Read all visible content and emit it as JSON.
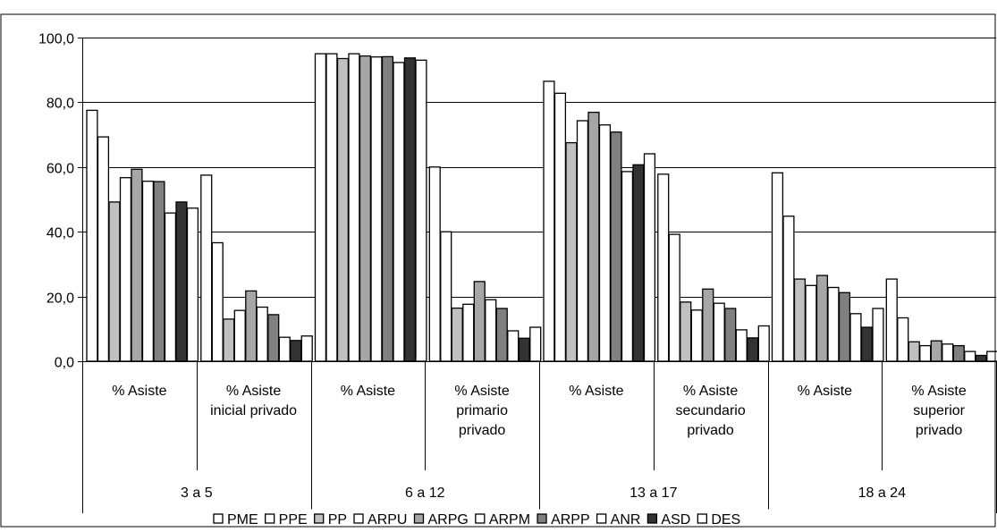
{
  "chart_data": {
    "type": "bar",
    "title": "",
    "xlabel": "",
    "ylabel": "",
    "ylim": [
      0,
      100
    ],
    "y_ticks": [
      "0,0",
      "20,0",
      "40,0",
      "60,0",
      "80,0",
      "100,0"
    ],
    "y_tick_values": [
      0,
      20,
      40,
      60,
      80,
      100
    ],
    "grid": true,
    "legend_position": "bottom",
    "groups": [
      {
        "label": "3 a 5",
        "categories": [
          [
            "% Asiste"
          ],
          [
            "% Asiste",
            "inicial privado"
          ]
        ]
      },
      {
        "label": "6 a 12",
        "categories": [
          [
            "% Asiste"
          ],
          [
            "% Asiste",
            "primario",
            "privado"
          ]
        ]
      },
      {
        "label": "13 a 17",
        "categories": [
          [
            "% Asiste"
          ],
          [
            "% Asiste",
            "secundario",
            "privado"
          ]
        ]
      },
      {
        "label": "18 a 24",
        "categories": [
          [
            "% Asiste"
          ],
          [
            "% Asiste",
            "superior",
            "privado"
          ]
        ]
      }
    ],
    "series": [
      {
        "name": "PME",
        "color": "#ffffff",
        "values": [
          77.5,
          57.5,
          95.0,
          60.0,
          86.5,
          57.8,
          58.2,
          25.4
        ]
      },
      {
        "name": "PPE",
        "color": "#ffffff",
        "values": [
          69.3,
          36.6,
          95.0,
          40.0,
          82.8,
          39.2,
          44.8,
          13.4
        ]
      },
      {
        "name": "PP",
        "color": "#c0c0c0",
        "values": [
          49.2,
          13.0,
          93.5,
          16.4,
          67.5,
          18.3,
          25.4,
          6.0
        ]
      },
      {
        "name": "ARPU",
        "color": "#ffffff",
        "values": [
          56.7,
          15.7,
          95.0,
          17.6,
          74.3,
          15.8,
          23.4,
          4.8
        ]
      },
      {
        "name": "ARPG",
        "color": "#a6a6a6",
        "values": [
          59.3,
          21.7,
          94.3,
          24.6,
          76.9,
          22.3,
          26.5,
          6.3
        ]
      },
      {
        "name": "ARPM",
        "color": "#ffffff",
        "values": [
          55.6,
          16.7,
          94.0,
          19.0,
          73.0,
          17.9,
          22.8,
          5.3
        ]
      },
      {
        "name": "ARPP",
        "color": "#808080",
        "values": [
          55.5,
          14.4,
          94.1,
          16.3,
          70.8,
          16.3,
          21.2,
          4.8
        ]
      },
      {
        "name": "ANR",
        "color": "#ffffff",
        "values": [
          45.8,
          7.4,
          92.3,
          9.4,
          58.6,
          9.7,
          14.7,
          3.0
        ]
      },
      {
        "name": "ASD",
        "color": "#333333",
        "values": [
          49.2,
          6.4,
          93.7,
          7.1,
          60.7,
          7.2,
          10.5,
          1.8
        ]
      },
      {
        "name": "DES",
        "color": "#ffffff",
        "values": [
          47.3,
          7.8,
          93.0,
          10.5,
          64.1,
          10.9,
          16.3,
          3.0
        ]
      }
    ]
  }
}
